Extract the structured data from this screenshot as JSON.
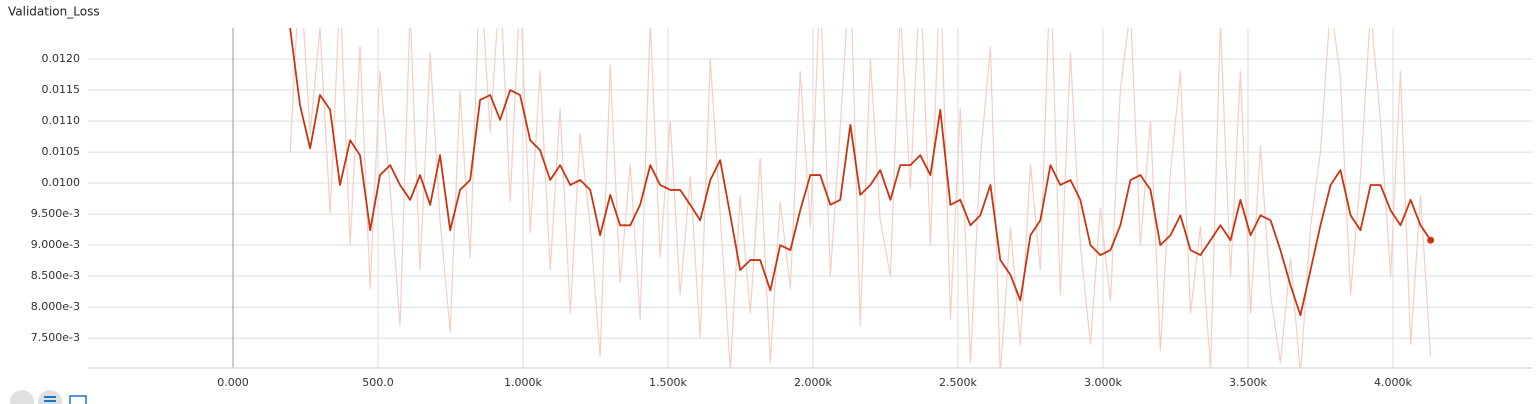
{
  "chart_data": {
    "type": "line",
    "title": "Validation_Loss",
    "x": [
      197,
      231,
      266,
      300,
      335,
      369,
      404,
      438,
      473,
      507,
      542,
      576,
      611,
      645,
      680,
      714,
      749,
      783,
      818,
      852,
      887,
      921,
      956,
      990,
      1025,
      1059,
      1094,
      1128,
      1163,
      1197,
      1232,
      1266,
      1301,
      1335,
      1370,
      1404,
      1439,
      1473,
      1508,
      1542,
      1577,
      1611,
      1646,
      1680,
      1715,
      1749,
      1784,
      1818,
      1853,
      1887,
      1922,
      1956,
      1991,
      2025,
      2060,
      2094,
      2129,
      2163,
      2198,
      2232,
      2267,
      2301,
      2336,
      2370,
      2405,
      2439,
      2474,
      2508,
      2543,
      2577,
      2612,
      2646,
      2681,
      2715,
      2750,
      2784,
      2819,
      2853,
      2888,
      2922,
      2957,
      2991,
      3026,
      3060,
      3095,
      3129,
      3164,
      3198,
      3233,
      3267,
      3302,
      3336,
      3371,
      3405,
      3440,
      3474,
      3509,
      3543,
      3578,
      3612,
      3647,
      3681,
      3716,
      3750,
      3785,
      3819,
      3854,
      3888,
      3923,
      3957,
      3992,
      4026,
      4061,
      4095,
      4130
    ],
    "series": [
      {
        "color": "#f3cfc3",
        "values": [
          0.0105,
          0.0135,
          0.0108,
          0.0125,
          0.0095,
          0.0131,
          0.009,
          0.0122,
          0.0083,
          0.0118,
          0.0099,
          0.0077,
          0.0128,
          0.0086,
          0.0121,
          0.0094,
          0.0076,
          0.0115,
          0.0088,
          0.0135,
          0.0108,
          0.0133,
          0.0097,
          0.0131,
          0.0092,
          0.0118,
          0.0086,
          0.0112,
          0.0079,
          0.0108,
          0.0093,
          0.0072,
          0.0119,
          0.0084,
          0.0103,
          0.0078,
          0.0126,
          0.0088,
          0.011,
          0.0082,
          0.0101,
          0.0075,
          0.012,
          0.0095,
          0.007,
          0.0098,
          0.0079,
          0.0104,
          0.0071,
          0.0097,
          0.0083,
          0.0118,
          0.0093,
          0.0132,
          0.0085,
          0.0109,
          0.0135,
          0.0077,
          0.012,
          0.0094,
          0.0085,
          0.0128,
          0.0099,
          0.0134,
          0.009,
          0.0135,
          0.0078,
          0.0112,
          0.0071,
          0.0104,
          0.0122,
          0.0069,
          0.0093,
          0.0074,
          0.0103,
          0.0086,
          0.0135,
          0.0082,
          0.0121,
          0.009,
          0.0074,
          0.0096,
          0.0081,
          0.0115,
          0.0128,
          0.009,
          0.011,
          0.0073,
          0.0102,
          0.0118,
          0.0079,
          0.0093,
          0.007,
          0.0126,
          0.0085,
          0.0118,
          0.0079,
          0.0106,
          0.0082,
          0.0071,
          0.0088,
          0.0069,
          0.0093,
          0.0105,
          0.0129,
          0.0117,
          0.0082,
          0.0101,
          0.0128,
          0.011,
          0.0085,
          0.0118,
          0.0074,
          0.0098,
          0.0072
        ]
      },
      {
        "color": "#c73512",
        "values": [
          0.0125,
          0.01126,
          0.01056,
          0.01142,
          0.01118,
          0.00997,
          0.01069,
          0.01045,
          0.00924,
          0.01013,
          0.01029,
          0.00997,
          0.00973,
          0.01013,
          0.00965,
          0.01045,
          0.00924,
          0.00989,
          0.01005,
          0.01134,
          0.01142,
          0.01102,
          0.0115,
          0.01142,
          0.01069,
          0.01053,
          0.01005,
          0.01029,
          0.00997,
          0.01005,
          0.00989,
          0.00916,
          0.00981,
          0.00932,
          0.00932,
          0.00965,
          0.01029,
          0.00997,
          0.00989,
          0.00989,
          0.00965,
          0.0094,
          0.01005,
          0.01037,
          0.00948,
          0.0086,
          0.00876,
          0.00876,
          0.00827,
          0.009,
          0.00892,
          0.00956,
          0.01013,
          0.01013,
          0.00965,
          0.00973,
          0.01094,
          0.00981,
          0.00997,
          0.01021,
          0.00973,
          0.01029,
          0.01029,
          0.01045,
          0.01013,
          0.01118,
          0.00965,
          0.00973,
          0.00932,
          0.00948,
          0.00997,
          0.00876,
          0.00852,
          0.00811,
          0.00916,
          0.0094,
          0.01029,
          0.00997,
          0.01005,
          0.00973,
          0.009,
          0.00884,
          0.00892,
          0.00932,
          0.01005,
          0.01013,
          0.00989,
          0.009,
          0.00916,
          0.00948,
          0.00892,
          0.00884,
          0.00908,
          0.00932,
          0.00908,
          0.00973,
          0.00916,
          0.00948,
          0.0094,
          0.00892,
          0.00835,
          0.00787,
          0.0086,
          0.00932,
          0.00997,
          0.01021,
          0.00948,
          0.00924,
          0.00997,
          0.00997,
          0.00956,
          0.00932,
          0.00973,
          0.00932,
          0.00908
        ]
      }
    ],
    "xlim": [
      -500,
      4483
    ],
    "ylim": [
      0.00702,
      0.0125
    ],
    "xticks": [
      {
        "value": 0,
        "label": "0.000"
      },
      {
        "value": 500,
        "label": "500.0"
      },
      {
        "value": 1000,
        "label": "1.000k"
      },
      {
        "value": 1500,
        "label": "1.500k"
      },
      {
        "value": 2000,
        "label": "2.000k"
      },
      {
        "value": 2500,
        "label": "2.500k"
      },
      {
        "value": 3000,
        "label": "3.000k"
      },
      {
        "value": 3500,
        "label": "3.500k"
      },
      {
        "value": 4000,
        "label": "4.000k"
      }
    ],
    "yticks": [
      {
        "value": 0.0075,
        "label": "7.500e-3"
      },
      {
        "value": 0.008,
        "label": "8.000e-3"
      },
      {
        "value": 0.0085,
        "label": "8.500e-3"
      },
      {
        "value": 0.009,
        "label": "9.000e-3"
      },
      {
        "value": 0.0095,
        "label": "9.500e-3"
      },
      {
        "value": 0.01,
        "label": "0.0100"
      },
      {
        "value": 0.0105,
        "label": "0.0105"
      },
      {
        "value": 0.011,
        "label": "0.0110"
      },
      {
        "value": 0.0115,
        "label": "0.0115"
      },
      {
        "value": 0.012,
        "label": "0.0120"
      }
    ],
    "grid": true
  }
}
